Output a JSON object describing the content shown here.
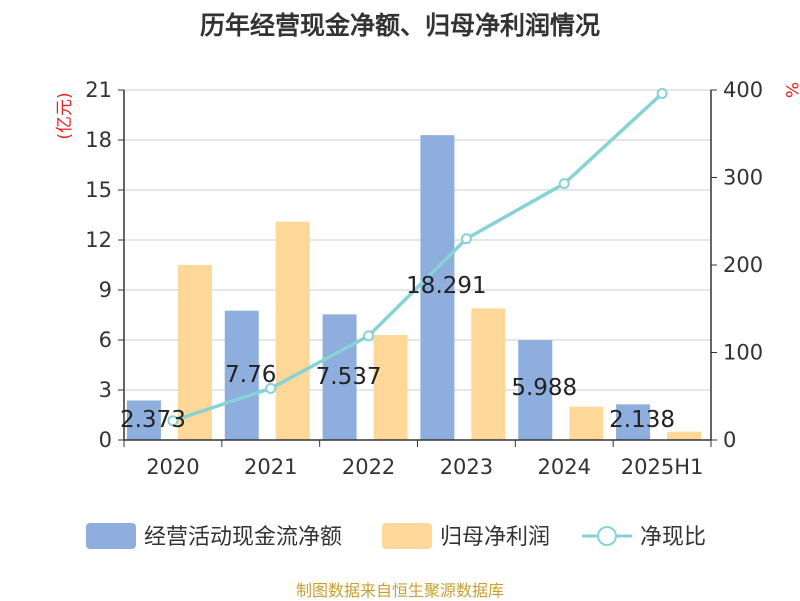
{
  "colors": {
    "bar1": "#8eaedd",
    "bar2": "#fdd898",
    "line": "#86d2d6",
    "grid": "#cccccc",
    "axis": "#333333",
    "unit": "#e8231f",
    "source": "#c8a032"
  },
  "chart_data": {
    "type": "bar",
    "title": "历年经营现金净额、归母净利润情况",
    "categories": [
      "2020",
      "2021",
      "2022",
      "2023",
      "2024",
      "2025H1"
    ],
    "y_left": {
      "label": "(亿元)",
      "ticks": [
        "0",
        "3",
        "6",
        "9",
        "12",
        "15",
        "18",
        "21"
      ],
      "range": [
        0,
        21
      ]
    },
    "y_right": {
      "label": "%",
      "ticks": [
        "0",
        "100",
        "200",
        "300",
        "400"
      ],
      "range": [
        0,
        400
      ]
    },
    "series": [
      {
        "name": "经营活动现金流净额",
        "type": "bar",
        "axis": "left",
        "values": [
          2.373,
          7.76,
          7.537,
          18.291,
          5.988,
          2.138
        ],
        "labels": [
          "2.373",
          "7.76",
          "7.537",
          "18.291",
          "5.988",
          "2.138"
        ]
      },
      {
        "name": "归母净利润",
        "type": "bar",
        "axis": "left",
        "values": [
          10.5,
          13.1,
          6.3,
          7.9,
          2.0,
          0.5
        ]
      },
      {
        "name": "净现比",
        "type": "line",
        "axis": "right",
        "values": [
          22,
          59,
          119,
          230,
          293,
          396
        ]
      }
    ],
    "legend_position": "bottom",
    "grid": true
  },
  "source": "制图数据来自恒生聚源数据库"
}
